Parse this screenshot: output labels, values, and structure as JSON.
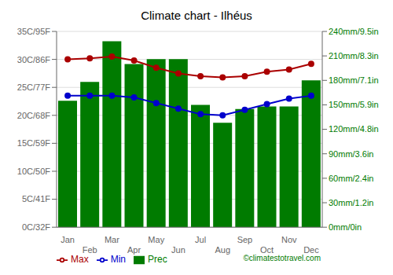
{
  "chart_data": {
    "type": "bar",
    "title": "Climate chart - Ilhéus",
    "categories": [
      "Jan",
      "Feb",
      "Mar",
      "Apr",
      "May",
      "Jun",
      "Jul",
      "Aug",
      "Sep",
      "Oct",
      "Nov",
      "Dec"
    ],
    "series": [
      {
        "name": "Prec",
        "type": "bar",
        "color": "#007b00",
        "axis": "y2",
        "values": [
          155,
          178,
          228,
          200,
          206,
          206,
          150,
          128,
          145,
          148,
          148,
          180
        ]
      },
      {
        "name": "Min",
        "type": "line",
        "color": "#0000cc",
        "marker": "circle",
        "values": [
          23.5,
          23.5,
          23.5,
          23.2,
          22.2,
          21.2,
          20.2,
          20.0,
          21.0,
          22.0,
          23.0,
          23.5
        ]
      },
      {
        "name": "Max",
        "type": "line",
        "color": "#aa0000",
        "marker": "circle",
        "values": [
          30.0,
          30.2,
          30.5,
          29.8,
          28.5,
          27.5,
          27.0,
          26.8,
          27.0,
          27.8,
          28.2,
          29.2
        ]
      }
    ],
    "ylim": [
      0,
      35
    ],
    "yticks": [
      {
        "value": 0,
        "label": "0C/32F"
      },
      {
        "value": 5,
        "label": "5C/41F"
      },
      {
        "value": 10,
        "label": "10C/50F"
      },
      {
        "value": 15,
        "label": "15C/59F"
      },
      {
        "value": 20,
        "label": "20C/68F"
      },
      {
        "value": 25,
        "label": "25C/77F"
      },
      {
        "value": 30,
        "label": "30C/86F"
      },
      {
        "value": 35,
        "label": "35C/95F"
      }
    ],
    "y2lim": [
      0,
      240
    ],
    "y2ticks": [
      {
        "value": 0,
        "label": "0mm/0in"
      },
      {
        "value": 30,
        "label": "30mm/1.2in"
      },
      {
        "value": 60,
        "label": "60mm/2.4in"
      },
      {
        "value": 90,
        "label": "90mm/3.6in"
      },
      {
        "value": 120,
        "label": "120mm/4.8in"
      },
      {
        "value": 150,
        "label": "150mm/5.9in"
      },
      {
        "value": 180,
        "label": "180mm/7.1in"
      },
      {
        "value": 210,
        "label": "210mm/8.3in"
      },
      {
        "value": 240,
        "label": "240mm/9.5in"
      }
    ],
    "grid": true,
    "legend": "lower left",
    "annotations": [
      "©climatestotravel.com"
    ]
  }
}
